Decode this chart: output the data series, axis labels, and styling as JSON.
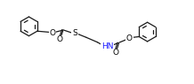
{
  "bg_color": "#ffffff",
  "line_color": "#1a1a1a",
  "atom_colors": {
    "O": "#000000",
    "S": "#000000",
    "N": "#1a1aff",
    "C": "#1a1a1a"
  },
  "font_size": 6.5,
  "figsize": [
    2.18,
    0.95
  ],
  "dpi": 100,
  "lw": 0.9,
  "ring_r": 0.52
}
